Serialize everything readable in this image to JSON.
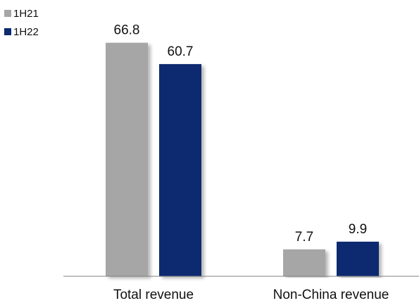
{
  "chart_data": {
    "type": "bar",
    "categories": [
      "Total revenue",
      "Non-China revenue"
    ],
    "series": [
      {
        "name": "1H21",
        "values": [
          66.8,
          7.7
        ],
        "color": "#a6a6a6"
      },
      {
        "name": "1H22",
        "values": [
          60.7,
          9.9
        ],
        "color": "#0b2a6f"
      }
    ],
    "legend_position": "top-left",
    "grid": false
  }
}
